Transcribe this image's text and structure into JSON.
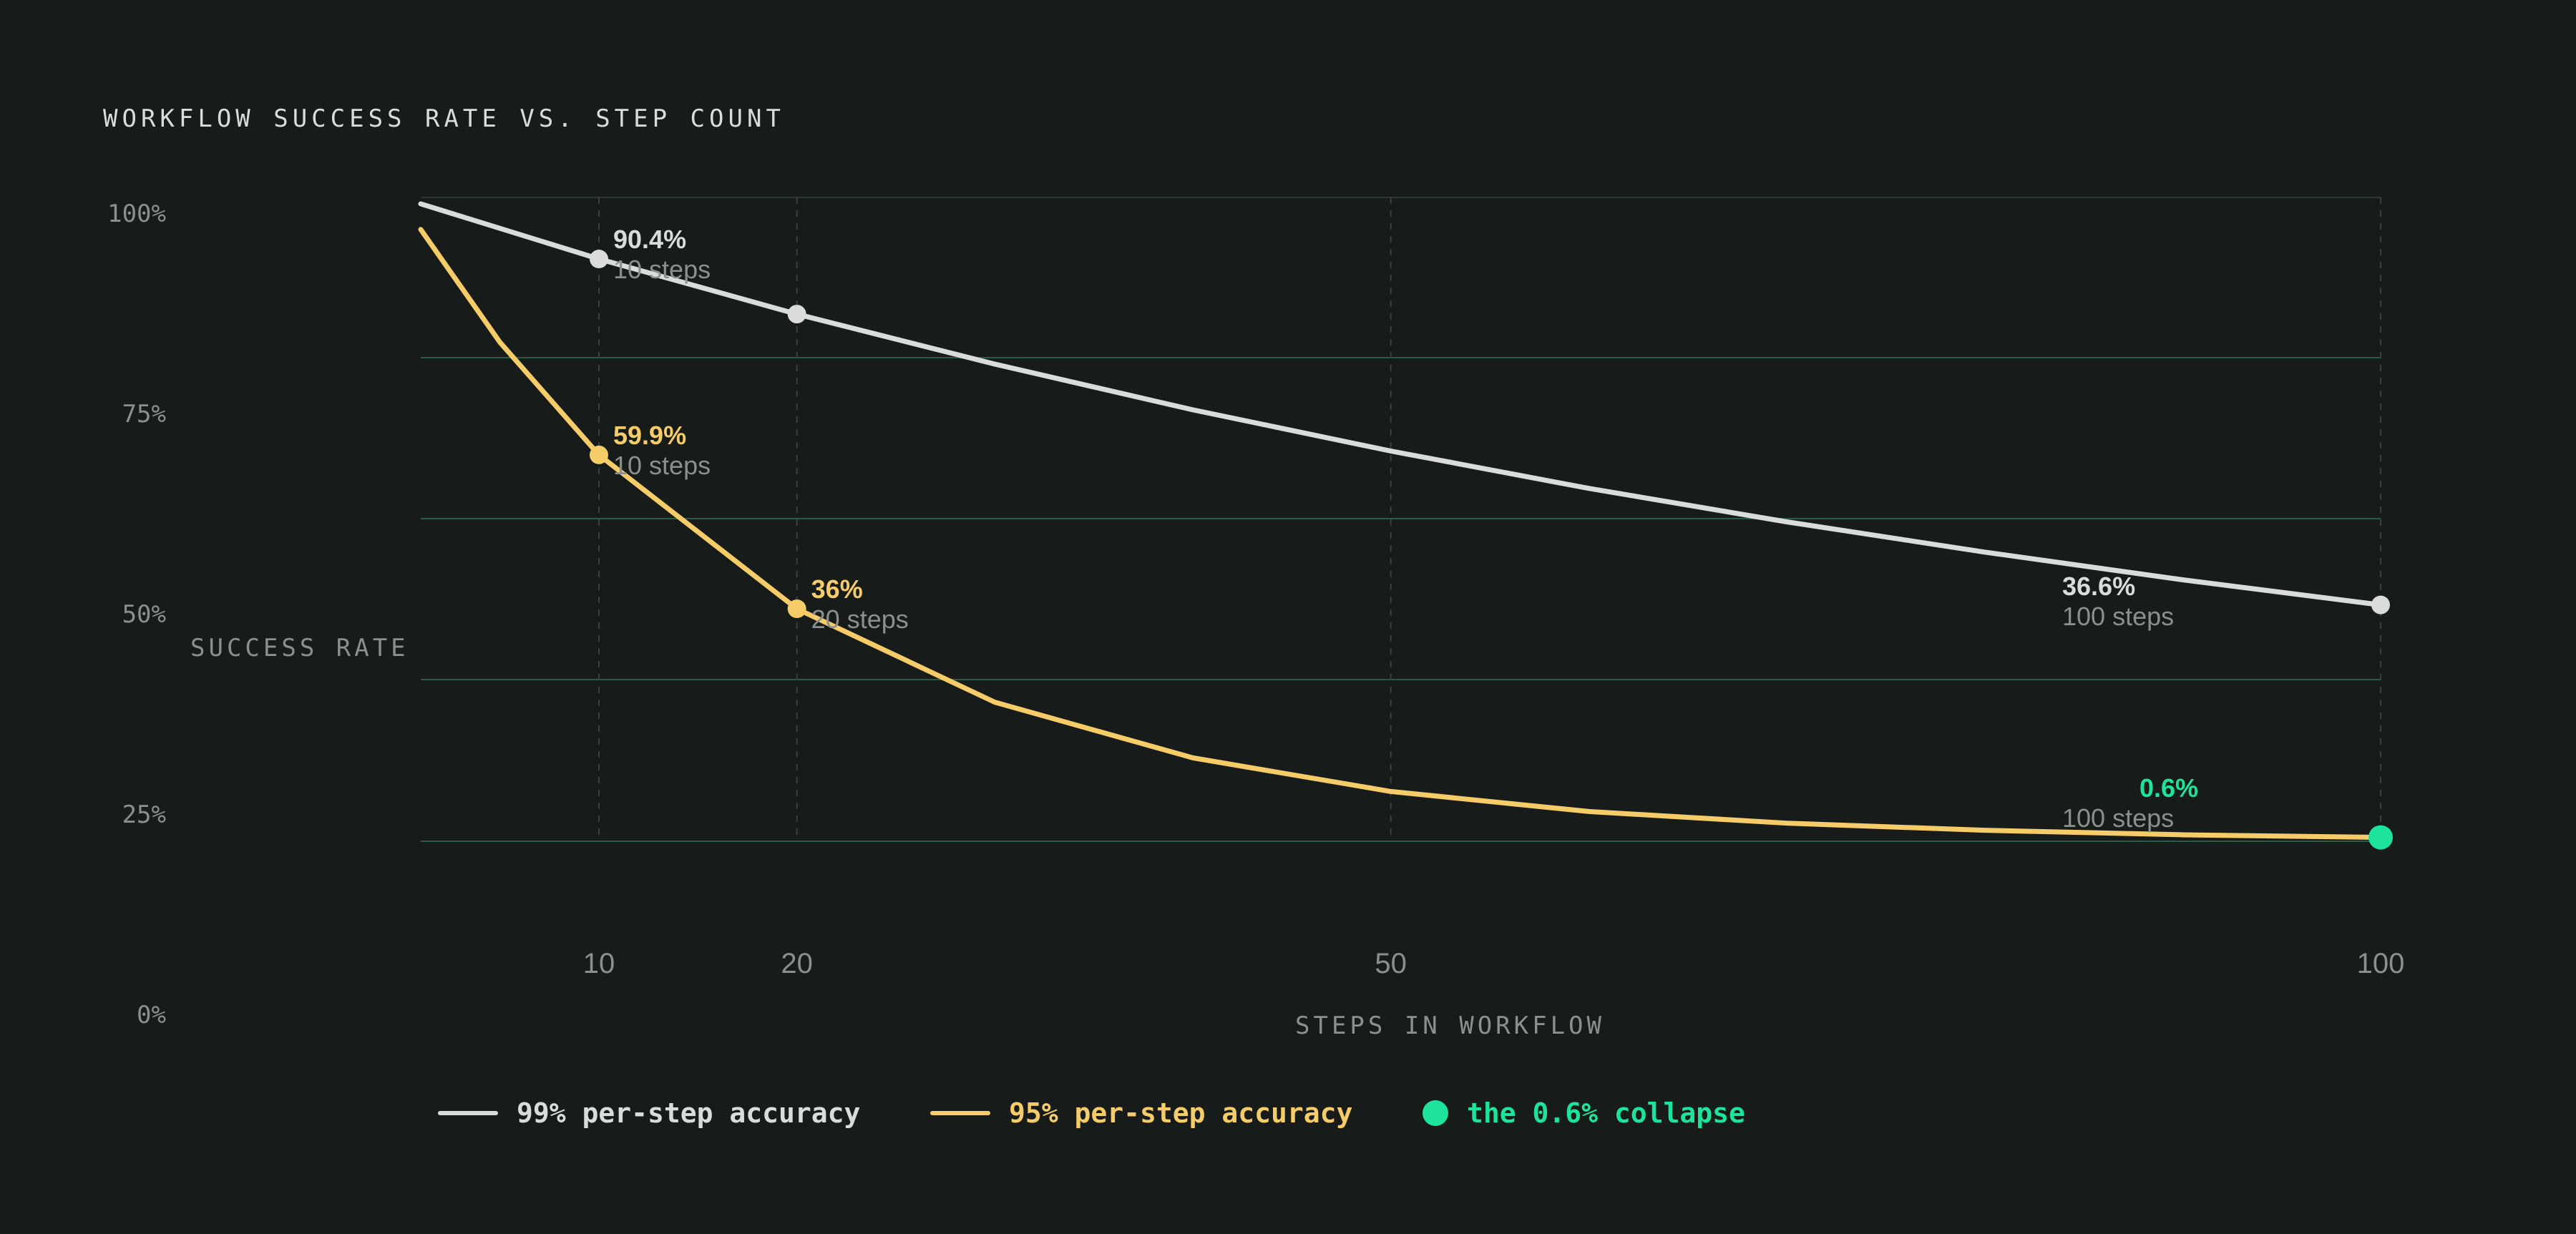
{
  "chart_data": {
    "type": "line",
    "title": "WORKFLOW SUCCESS RATE VS. STEP COUNT",
    "xlabel": "STEPS IN WORKFLOW",
    "ylabel": "SUCCESS RATE",
    "x_ticks": [
      "10",
      "20",
      "50",
      "100"
    ],
    "y_ticks": [
      "100%",
      "75%",
      "50%",
      "25%",
      "0%"
    ],
    "xlim": [
      0,
      100
    ],
    "grid": true,
    "legend_position": "bottom",
    "series": [
      {
        "name": "99% per-step accuracy",
        "color": "#d9dcda",
        "x": [
          1,
          10,
          20,
          30,
          40,
          50,
          60,
          70,
          80,
          90,
          100
        ],
        "y": [
          99,
          90.4,
          81.8,
          74,
          66.9,
          60.5,
          54.7,
          49.5,
          44.8,
          40.5,
          36.6
        ]
      },
      {
        "name": "95% per-step accuracy",
        "color": "#f5cc68",
        "x": [
          1,
          5,
          10,
          20,
          30,
          40,
          50,
          60,
          70,
          80,
          90,
          100
        ],
        "y": [
          95,
          77.4,
          59.9,
          36,
          21.5,
          12.9,
          7.7,
          4.6,
          2.8,
          1.7,
          1,
          0.6
        ]
      }
    ],
    "annotations": [
      {
        "series": 0,
        "x": 10,
        "value": "90.4%",
        "sub": "10 steps"
      },
      {
        "series": 0,
        "x": 20
      },
      {
        "series": 0,
        "x": 100,
        "value": "36.6%",
        "sub": "100 steps"
      },
      {
        "series": 1,
        "x": 10,
        "value": "59.9%",
        "sub": "10 steps"
      },
      {
        "series": 1,
        "x": 20,
        "value": "36%",
        "sub": "20 steps"
      },
      {
        "series": 1,
        "x": 100,
        "value": "0.6%",
        "sub": "100 steps",
        "highlight": true
      }
    ],
    "legend": [
      {
        "label": "99% per-step accuracy",
        "color": "#d9dcda",
        "marker": "line"
      },
      {
        "label": "95% per-step accuracy",
        "color": "#f5cc68",
        "marker": "line"
      },
      {
        "label": "the 0.6% collapse",
        "color": "#1ee39c",
        "marker": "dot"
      }
    ],
    "colors": {
      "background": "#171b1a",
      "grid": "#2b5a45",
      "vgrid": "#34443d",
      "muted_text": "#8b908d",
      "highlight": "#1ee39c"
    }
  }
}
